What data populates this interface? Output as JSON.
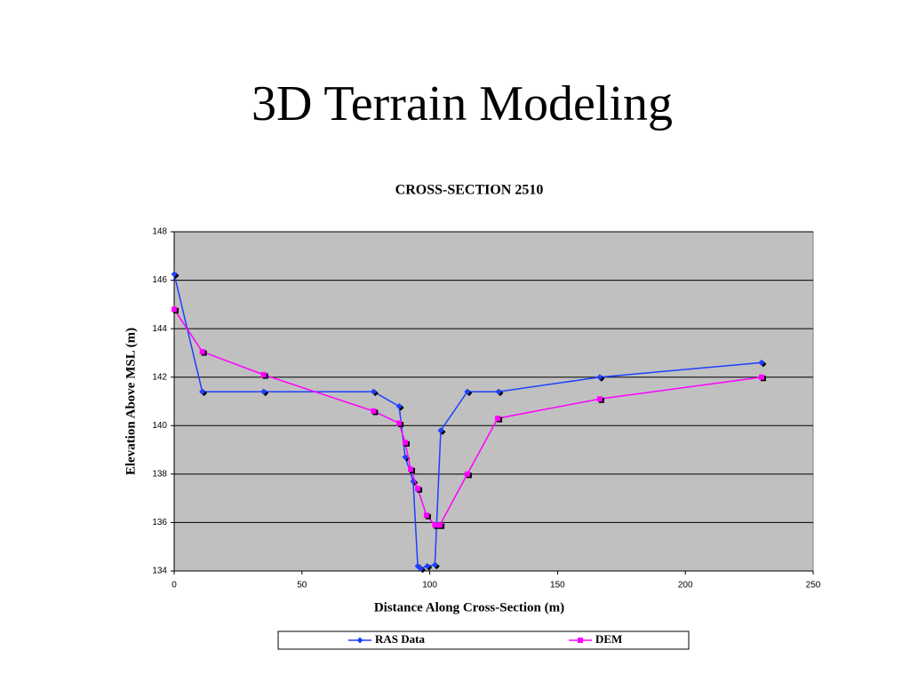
{
  "title": "3D Terrain Modeling",
  "chart_data": {
    "type": "line",
    "title": "CROSS-SECTION 2510",
    "x_label": "Distance Along Cross-Section (m)",
    "y_label": "Elevation Above MSL (m)",
    "xlim": [
      0,
      250
    ],
    "xticks": [
      0,
      50,
      100,
      150,
      200,
      250
    ],
    "ylim": [
      134,
      148
    ],
    "yticks": [
      134,
      136,
      138,
      140,
      142,
      144,
      146,
      148
    ],
    "grid": true,
    "legend": "bottom",
    "series": [
      {
        "name": "RAS Data",
        "color": "#1f3fff",
        "marker": "diamond",
        "x": [
          0,
          11,
          35,
          78,
          88,
          90.4,
          93.5,
          95.3,
          96.5,
          99,
          102,
          104.3,
          114.7,
          126.9,
          166.5,
          229.8
        ],
        "values": [
          146.25,
          141.4,
          141.4,
          141.4,
          140.8,
          138.7,
          137.7,
          134.2,
          134.1,
          134.2,
          134.25,
          139.8,
          141.4,
          141.4,
          142.0,
          142.6
        ]
      },
      {
        "name": "DEM",
        "color": "#ff00ff",
        "marker": "square",
        "x": [
          0,
          11,
          35,
          78,
          88,
          90.4,
          92.5,
          95.3,
          98.7,
          102,
          104,
          114.7,
          126.6,
          166.5,
          229.8
        ],
        "values": [
          144.8,
          143.05,
          142.1,
          140.6,
          140.1,
          139.3,
          138.2,
          137.4,
          136.3,
          135.9,
          135.9,
          138.0,
          140.3,
          141.1,
          142.0
        ]
      }
    ]
  }
}
